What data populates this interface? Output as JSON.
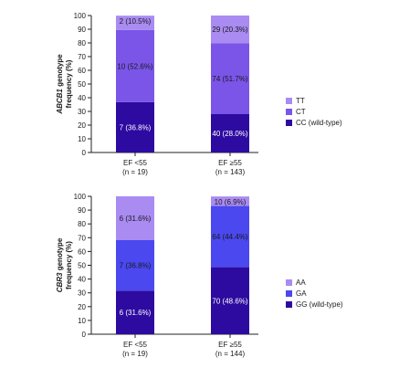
{
  "chart_data": [
    {
      "type": "bar",
      "stacked": true,
      "categories": [
        "EF <55",
        "EF ≥55"
      ],
      "category_n": [
        "(n = 19)",
        "(n = 143)"
      ],
      "ylabel_gene": "ABCB1",
      "ylabel_rest": " genotype",
      "ylabel_line2": "frequency (%)",
      "ylim": [
        0,
        100
      ],
      "yticks": [
        "0",
        "10",
        "20",
        "30",
        "40",
        "50",
        "60",
        "70",
        "80",
        "90",
        "100"
      ],
      "series": [
        {
          "name": "CC (wild-type)",
          "color": "#2d0aa0",
          "values": [
            36.8,
            28.0
          ],
          "labels": [
            "7 (36.8%)",
            "40 (28.0%)"
          ]
        },
        {
          "name": "CT",
          "color": "#7a55e8",
          "values": [
            52.6,
            51.7
          ],
          "labels": [
            "10 (52.6%)",
            "74 (51.7%)"
          ]
        },
        {
          "name": "TT",
          "color": "#a98bf2",
          "values": [
            10.5,
            20.3
          ],
          "labels": [
            "2 (10.5%)",
            "29 (20.3%)"
          ]
        }
      ]
    },
    {
      "type": "bar",
      "stacked": true,
      "categories": [
        "EF <55",
        "EF ≥55"
      ],
      "category_n": [
        "(n = 19)",
        "(n = 144)"
      ],
      "ylabel_gene": "CBR3",
      "ylabel_rest": " genotype",
      "ylabel_line2": "frequency (%)",
      "ylim": [
        0,
        100
      ],
      "yticks": [
        "0",
        "10",
        "20",
        "30",
        "40",
        "50",
        "60",
        "70",
        "80",
        "90",
        "100"
      ],
      "series": [
        {
          "name": "GG (wild-type)",
          "color": "#2d0aa0",
          "values": [
            31.6,
            48.6
          ],
          "labels": [
            "6 (31.6%)",
            "70 (48.6%)"
          ]
        },
        {
          "name": "GA",
          "color": "#4a48ee",
          "values": [
            36.8,
            44.4
          ],
          "labels": [
            "7 (36.8%)",
            "64 (44.4%)"
          ]
        },
        {
          "name": "AA",
          "color": "#a98bf2",
          "values": [
            31.6,
            6.9
          ],
          "labels": [
            "6 (31.6%)",
            "10 (6.9%)"
          ]
        }
      ]
    }
  ]
}
